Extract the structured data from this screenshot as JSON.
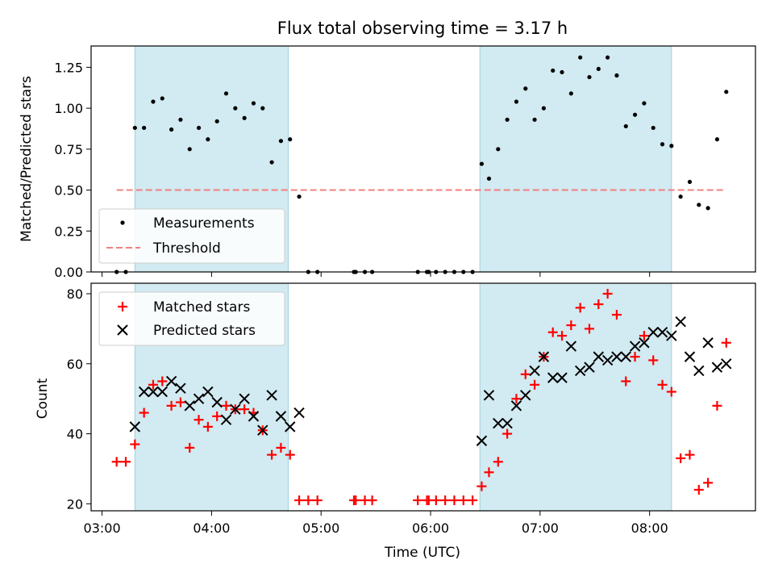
{
  "chart_data": [
    {
      "type": "scatter",
      "title": "Flux total observing time = 3.17 h",
      "xlabel": "",
      "ylabel": "Matched/Predicted stars",
      "xlim": [
        "02:54",
        "08:58"
      ],
      "ylim": [
        0,
        1.38
      ],
      "y_ticks": [
        0.0,
        0.25,
        0.5,
        0.75,
        1.0,
        1.25
      ],
      "y_tick_labels": [
        "0.00",
        "0.25",
        "0.50",
        "0.75",
        "1.00",
        "1.25"
      ],
      "x_tick_labels_visible": false,
      "legend_location": "lower-left",
      "shaded_intervals": [
        [
          "03:18",
          "04:42"
        ],
        [
          "06:27",
          "08:12"
        ]
      ],
      "shade_color": "#add8e6",
      "series": [
        {
          "name": "Measurements",
          "color": "#000000",
          "marker": "dot",
          "x": [
            "03:08",
            "03:13",
            "03:18",
            "03:23",
            "03:28",
            "03:33",
            "03:38",
            "03:43",
            "03:48",
            "03:53",
            "03:58",
            "04:03",
            "04:08",
            "04:13",
            "04:18",
            "04:23",
            "04:28",
            "04:33",
            "04:38",
            "04:43",
            "04:48",
            "04:53",
            "04:58",
            "05:18",
            "05:19",
            "05:24",
            "05:28",
            "05:53",
            "05:58",
            "05:59",
            "06:03",
            "06:08",
            "06:13",
            "06:18",
            "06:23",
            "06:28",
            "06:32",
            "06:37",
            "06:42",
            "06:47",
            "06:52",
            "06:57",
            "07:02",
            "07:07",
            "07:12",
            "07:17",
            "07:22",
            "07:27",
            "07:32",
            "07:37",
            "07:42",
            "07:47",
            "07:52",
            "07:57",
            "08:02",
            "08:07",
            "08:12",
            "08:17",
            "08:22",
            "08:27",
            "08:32",
            "08:37",
            "08:42"
          ],
          "y": [
            0,
            0,
            0.88,
            0.88,
            1.04,
            1.06,
            0.87,
            0.93,
            0.75,
            0.88,
            0.81,
            0.92,
            1.09,
            1.0,
            0.94,
            1.03,
            1.0,
            0.67,
            0.8,
            0.81,
            0.46,
            0,
            0,
            0,
            0,
            0,
            0,
            0,
            0,
            0,
            0,
            0,
            0,
            0,
            0,
            0.66,
            0.57,
            0.75,
            0.93,
            1.04,
            1.12,
            0.93,
            1.0,
            1.23,
            1.22,
            1.09,
            1.31,
            1.19,
            1.24,
            1.31,
            1.2,
            0.89,
            0.96,
            1.03,
            0.88,
            0.78,
            0.77,
            0.46,
            0.55,
            0.41,
            0.39,
            0.81,
            1.1
          ]
        },
        {
          "name": "Threshold",
          "color": "#f08080",
          "style": "dashed",
          "x": [
            "03:08",
            "08:42"
          ],
          "y": [
            0.5,
            0.5
          ]
        }
      ]
    },
    {
      "type": "scatter",
      "title": "",
      "xlabel": "Time (UTC)",
      "ylabel": "Count",
      "xlim": [
        "02:54",
        "08:58"
      ],
      "ylim": [
        18,
        83
      ],
      "y_ticks": [
        20,
        40,
        60,
        80
      ],
      "y_tick_labels": [
        "20",
        "40",
        "60",
        "80"
      ],
      "x_ticks": [
        "03:00",
        "04:00",
        "05:00",
        "06:00",
        "07:00",
        "08:00"
      ],
      "x_tick_labels": [
        "03:00",
        "04:00",
        "05:00",
        "06:00",
        "07:00",
        "08:00"
      ],
      "legend_location": "upper-left",
      "shaded_intervals": [
        [
          "03:18",
          "04:42"
        ],
        [
          "06:27",
          "08:12"
        ]
      ],
      "shade_color": "#add8e6",
      "series": [
        {
          "name": "Matched stars",
          "color": "#ff0000",
          "marker": "plus",
          "x": [
            "03:08",
            "03:13",
            "03:18",
            "03:23",
            "03:28",
            "03:33",
            "03:38",
            "03:43",
            "03:48",
            "03:53",
            "03:58",
            "04:03",
            "04:08",
            "04:13",
            "04:18",
            "04:23",
            "04:28",
            "04:33",
            "04:38",
            "04:43",
            "04:48",
            "04:53",
            "04:58",
            "05:18",
            "05:19",
            "05:24",
            "05:28",
            "05:53",
            "05:58",
            "05:59",
            "06:03",
            "06:08",
            "06:13",
            "06:18",
            "06:23",
            "06:28",
            "06:32",
            "06:37",
            "06:42",
            "06:47",
            "06:52",
            "06:57",
            "07:02",
            "07:07",
            "07:12",
            "07:17",
            "07:22",
            "07:27",
            "07:32",
            "07:37",
            "07:42",
            "07:47",
            "07:52",
            "07:57",
            "08:02",
            "08:07",
            "08:12",
            "08:17",
            "08:22",
            "08:27",
            "08:32",
            "08:37",
            "08:42"
          ],
          "y": [
            32,
            32,
            37,
            46,
            54,
            55,
            48,
            49,
            36,
            44,
            42,
            45,
            48,
            47,
            47,
            46,
            41,
            34,
            36,
            34,
            21,
            21,
            21,
            21,
            21,
            21,
            21,
            21,
            21,
            21,
            21,
            21,
            21,
            21,
            21,
            25,
            29,
            32,
            40,
            50,
            57,
            54,
            62,
            69,
            68,
            71,
            76,
            70,
            77,
            80,
            74,
            55,
            62,
            68,
            61,
            54,
            52,
            33,
            34,
            24,
            26,
            48,
            66
          ]
        },
        {
          "name": "Predicted stars",
          "color": "#000000",
          "marker": "x",
          "x": [
            "03:18",
            "03:23",
            "03:28",
            "03:33",
            "03:38",
            "03:43",
            "03:48",
            "03:53",
            "03:58",
            "04:03",
            "04:08",
            "04:13",
            "04:18",
            "04:23",
            "04:28",
            "04:33",
            "04:38",
            "04:43",
            "04:48",
            "06:28",
            "06:32",
            "06:37",
            "06:42",
            "06:47",
            "06:52",
            "06:57",
            "07:02",
            "07:07",
            "07:12",
            "07:17",
            "07:22",
            "07:27",
            "07:32",
            "07:37",
            "07:42",
            "07:47",
            "07:52",
            "07:57",
            "08:02",
            "08:07",
            "08:12",
            "08:17",
            "08:22",
            "08:27",
            "08:32",
            "08:37",
            "08:42"
          ],
          "y": [
            42,
            52,
            52,
            52,
            55,
            53,
            48,
            50,
            52,
            49,
            44,
            47,
            50,
            45,
            41,
            51,
            45,
            42,
            46,
            38,
            51,
            43,
            43,
            48,
            51,
            58,
            62,
            56,
            56,
            65,
            58,
            59,
            62,
            61,
            62,
            62,
            65,
            66,
            69,
            69,
            68,
            72,
            62,
            58,
            66,
            59,
            60
          ]
        }
      ]
    }
  ]
}
